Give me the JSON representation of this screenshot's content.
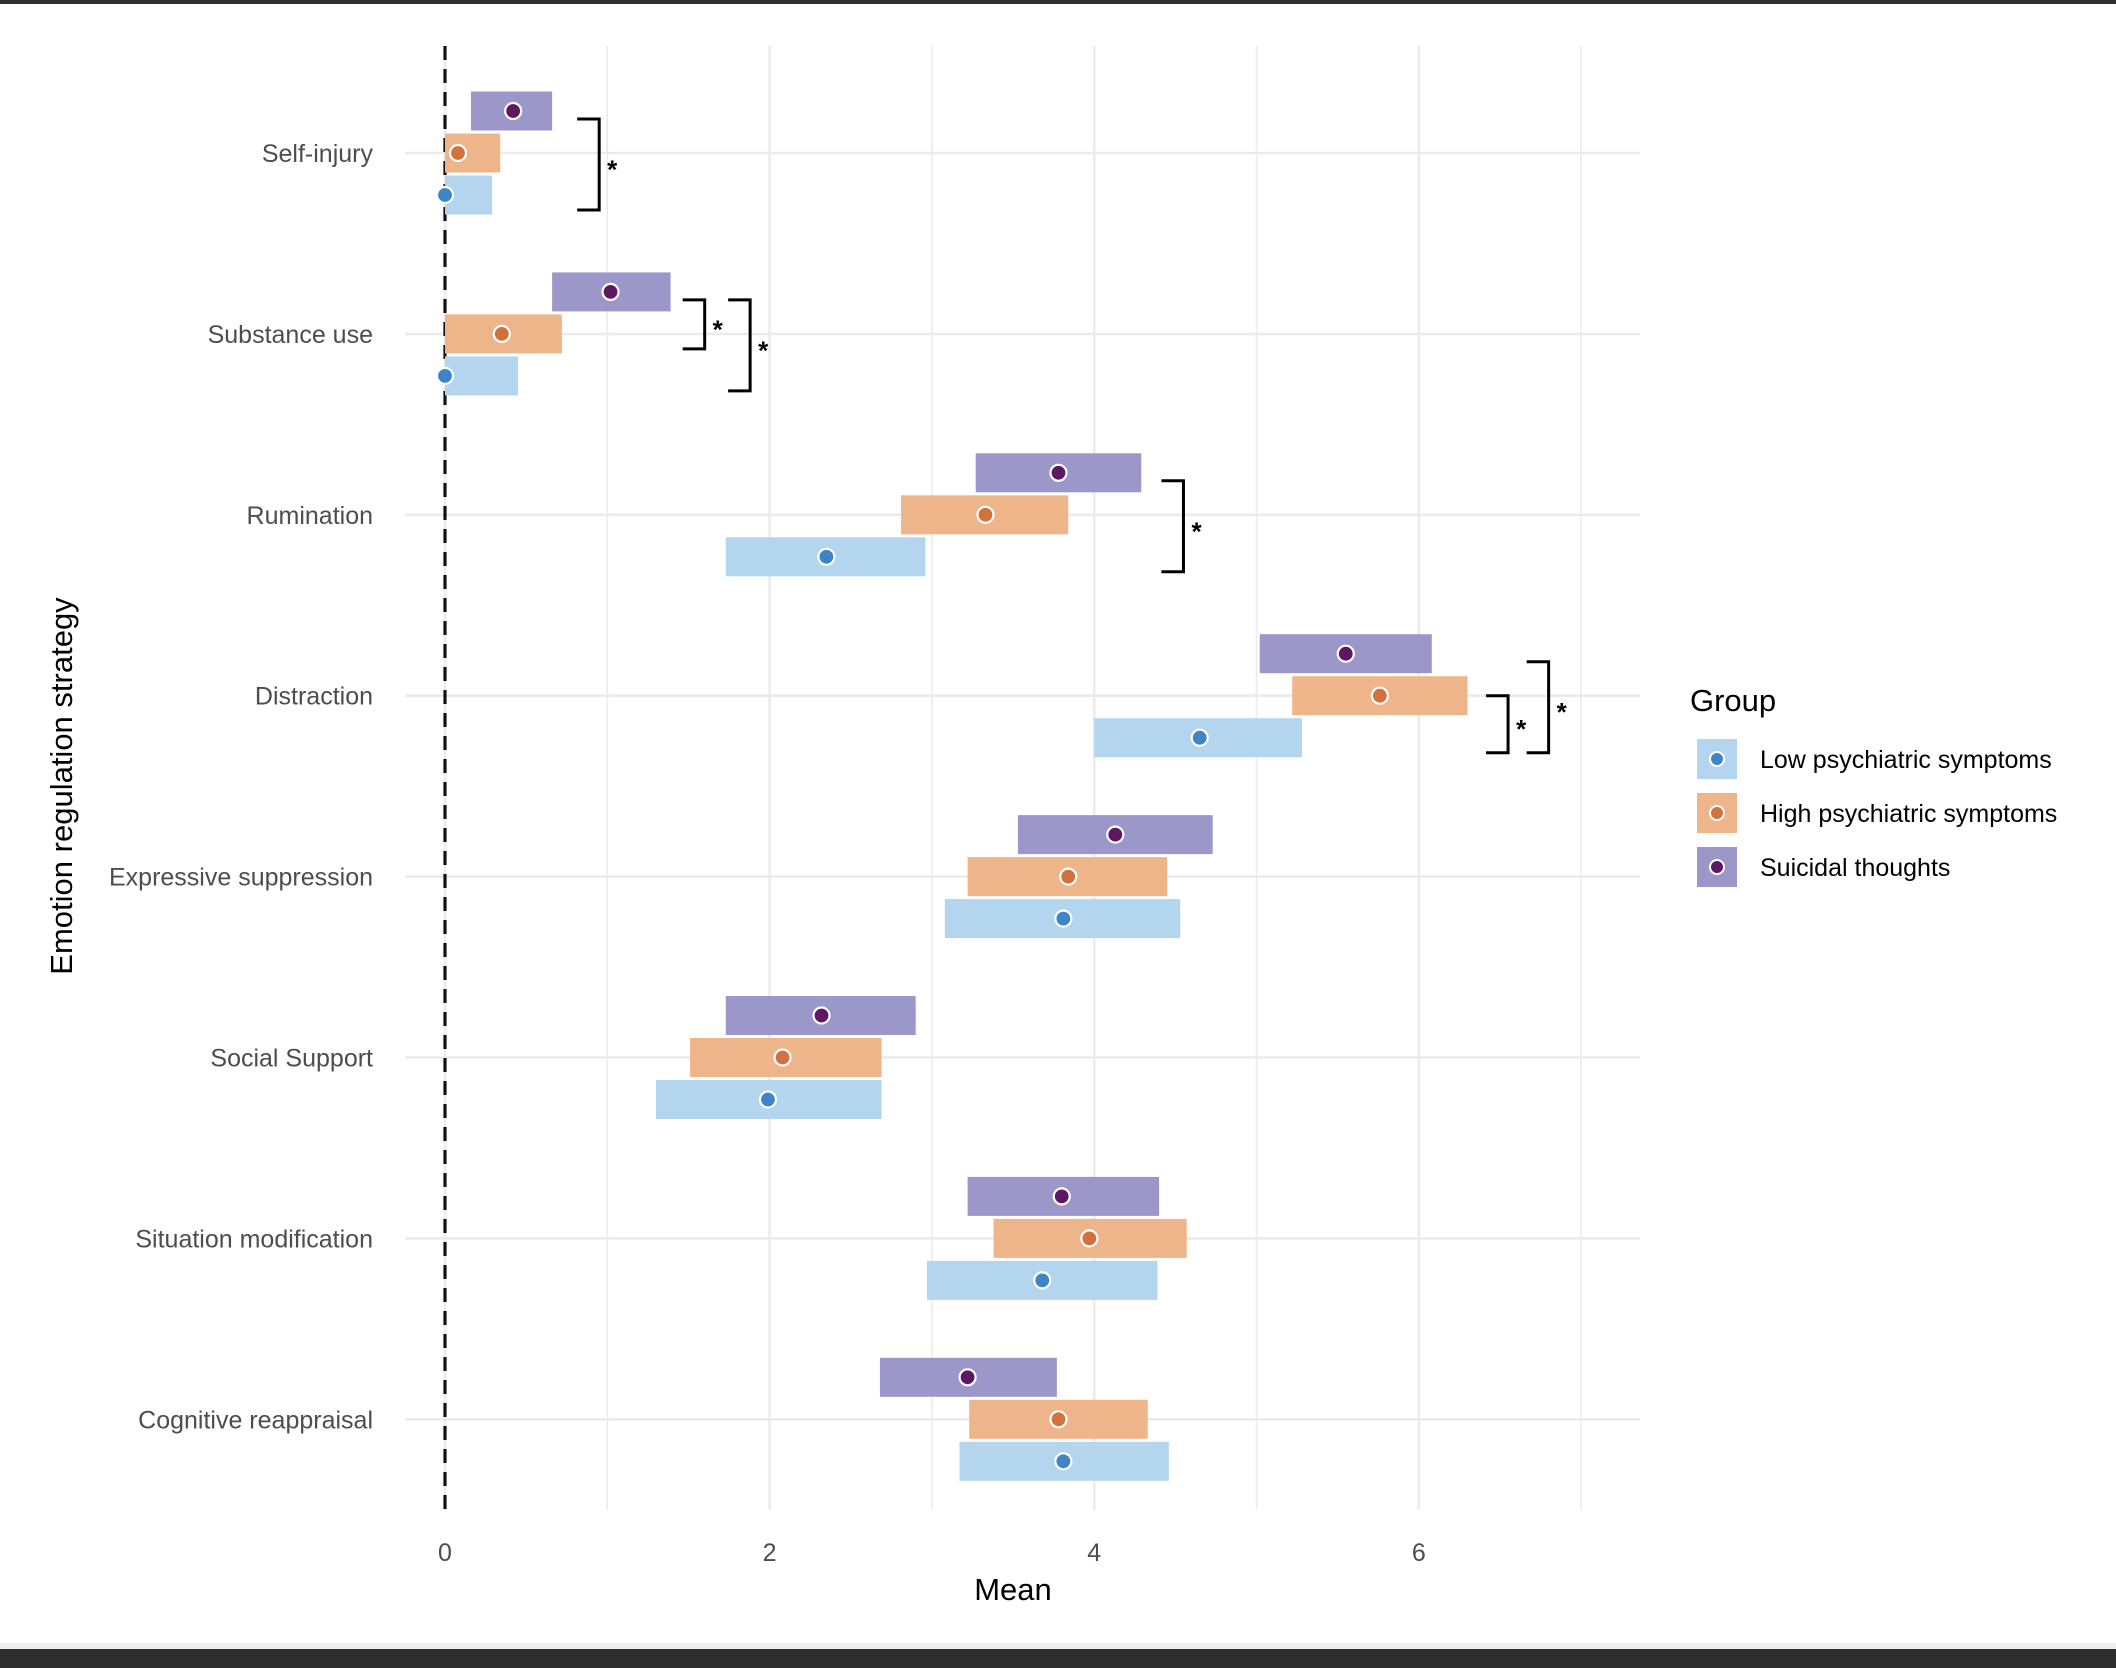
{
  "chart_data": {
    "type": "range-bar-with-points",
    "title": "",
    "xlabel": "Mean",
    "ylabel": "Emotion regulation strategy",
    "xlim": [
      -0.25,
      7.1
    ],
    "x_ticks": [
      0,
      2,
      4,
      6
    ],
    "x_minor_gridlines": [
      1,
      3,
      5,
      7
    ],
    "reference_line": {
      "x": 0,
      "style": "dashed"
    },
    "grid": true,
    "legend": {
      "title": "Group",
      "position": "right",
      "entries": [
        {
          "key": "low",
          "label": "Low psychiatric symptoms",
          "fill": "#b3d6ee",
          "point": "#3d85c6"
        },
        {
          "key": "high",
          "label": "High psychiatric symptoms",
          "fill": "#efb58a",
          "point": "#d2703e"
        },
        {
          "key": "suicidal",
          "label": "Suicidal thoughts",
          "fill": "#9b98c9",
          "point": "#5e1763"
        }
      ]
    },
    "categories": [
      "Self-injury",
      "Substance use",
      "Rumination",
      "Distraction",
      "Expressive suppression",
      "Social Support",
      "Situation modification",
      "Cognitive reappraisal"
    ],
    "series": [
      {
        "name": "Suicidal thoughts",
        "key": "suicidal",
        "mean": [
          0.42,
          1.02,
          3.78,
          5.55,
          4.13,
          2.32,
          3.8,
          3.22
        ],
        "lower": [
          0.16,
          0.66,
          3.27,
          5.02,
          3.53,
          1.73,
          3.22,
          2.68
        ],
        "upper": [
          0.66,
          1.39,
          4.29,
          6.08,
          4.73,
          2.9,
          4.4,
          3.77
        ]
      },
      {
        "name": "High psychiatric symptoms",
        "key": "high",
        "mean": [
          0.08,
          0.35,
          3.33,
          5.76,
          3.84,
          2.08,
          3.97,
          3.78
        ],
        "lower": [
          0.0,
          0.0,
          2.81,
          5.22,
          3.22,
          1.51,
          3.38,
          3.23
        ],
        "upper": [
          0.34,
          0.72,
          3.84,
          6.3,
          4.45,
          2.69,
          4.57,
          4.33
        ]
      },
      {
        "name": "Low psychiatric symptoms",
        "key": "low",
        "mean": [
          0.0,
          0.0,
          2.35,
          4.65,
          3.81,
          1.99,
          3.68,
          3.81
        ],
        "lower": [
          0.0,
          0.0,
          1.73,
          4.0,
          3.08,
          1.3,
          2.97,
          3.17
        ],
        "upper": [
          0.29,
          0.45,
          2.96,
          5.28,
          4.53,
          2.69,
          4.39,
          4.46
        ]
      }
    ],
    "significance": [
      {
        "category": "Self-injury",
        "from": "suicidal",
        "to": "low",
        "label": "*",
        "x": 0.95
      },
      {
        "category": "Substance use",
        "from": "suicidal",
        "to": "high",
        "label": "*",
        "x": 1.6
      },
      {
        "category": "Substance use",
        "from": "suicidal",
        "to": "low",
        "label": "*",
        "x": 1.88
      },
      {
        "category": "Rumination",
        "from": "suicidal",
        "to": "low",
        "label": "*",
        "x": 4.55
      },
      {
        "category": "Distraction",
        "from": "high",
        "to": "low",
        "label": "*",
        "x": 6.55
      },
      {
        "category": "Distraction",
        "from": "suicidal",
        "to": "low",
        "label": "*",
        "x": 6.8
      }
    ]
  }
}
